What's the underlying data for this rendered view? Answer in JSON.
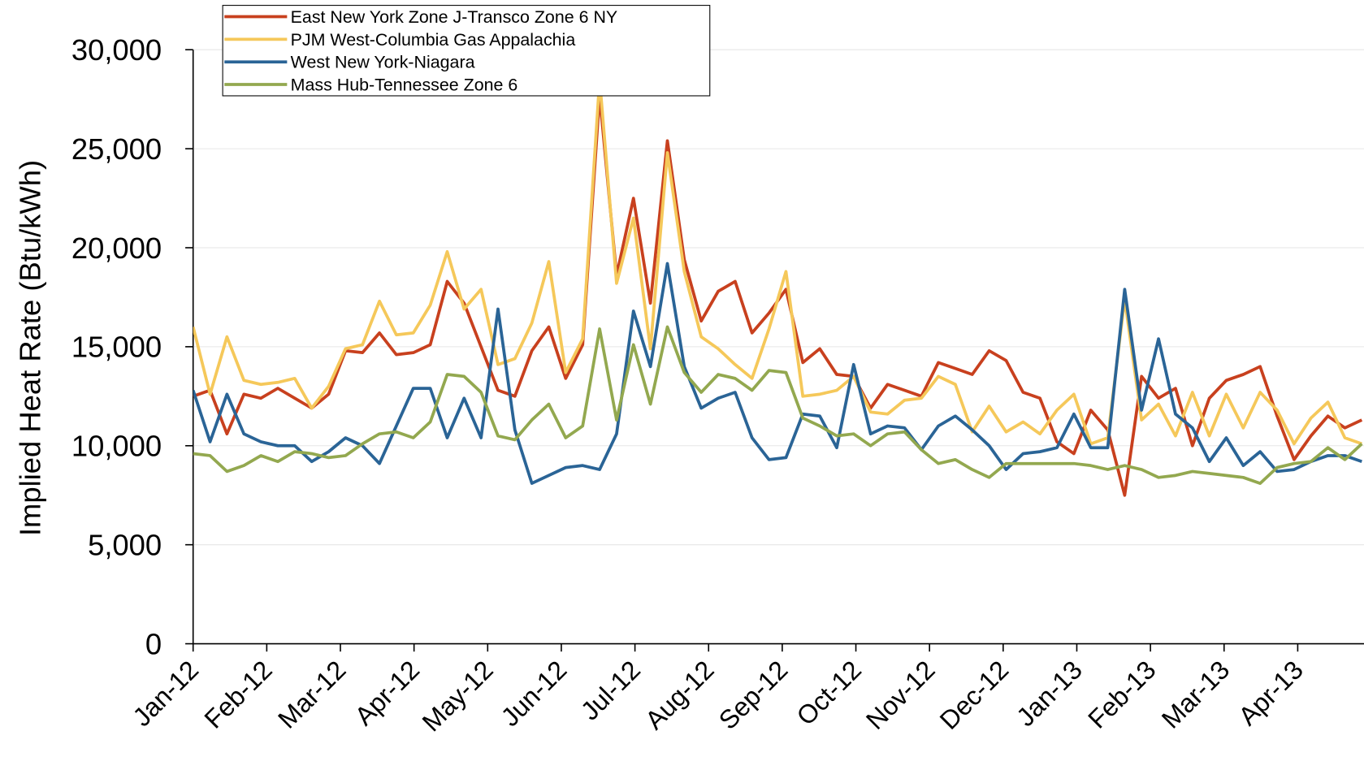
{
  "chart_data": {
    "type": "line",
    "ylabel": "Implied Heat Rate (Btu/kWh)",
    "x": [
      0,
      0.23,
      0.46,
      0.69,
      0.92,
      1.15,
      1.38,
      1.61,
      1.84,
      2.07,
      2.3,
      2.53,
      2.76,
      2.99,
      3.22,
      3.45,
      3.68,
      3.91,
      4.14,
      4.37,
      4.6,
      4.83,
      5.06,
      5.29,
      5.52,
      5.75,
      5.98,
      6.21,
      6.44,
      6.67,
      6.9,
      7.13,
      7.36,
      7.59,
      7.82,
      8.05,
      8.28,
      8.51,
      8.74,
      8.97,
      9.2,
      9.43,
      9.66,
      9.89,
      10.12,
      10.35,
      10.58,
      10.81,
      11.04,
      11.27,
      11.5,
      11.73,
      11.96,
      12.19,
      12.42,
      12.65,
      12.88,
      13.11,
      13.34,
      13.57,
      13.8,
      14.03,
      14.26,
      14.49,
      14.72,
      14.95,
      15.18,
      15.41,
      15.64,
      15.87
    ],
    "xlim": [
      0,
      15.9
    ],
    "xticks": [
      {
        "value": 0,
        "label": "Jan-12"
      },
      {
        "value": 1,
        "label": "Feb-12"
      },
      {
        "value": 2,
        "label": "Mar-12"
      },
      {
        "value": 3,
        "label": "Apr-12"
      },
      {
        "value": 4,
        "label": "May-12"
      },
      {
        "value": 5,
        "label": "Jun-12"
      },
      {
        "value": 6,
        "label": "Jul-12"
      },
      {
        "value": 7,
        "label": "Aug-12"
      },
      {
        "value": 8,
        "label": "Sep-12"
      },
      {
        "value": 9,
        "label": "Oct-12"
      },
      {
        "value": 10,
        "label": "Nov-12"
      },
      {
        "value": 11,
        "label": "Dec-12"
      },
      {
        "value": 12,
        "label": "Jan-13"
      },
      {
        "value": 13,
        "label": "Feb-13"
      },
      {
        "value": 14,
        "label": "Mar-13"
      },
      {
        "value": 15,
        "label": "Apr-13"
      }
    ],
    "ylim": [
      0,
      30000
    ],
    "yticks": [
      0,
      {
        "value": 5000,
        "label": "5,000"
      },
      {
        "value": 10000,
        "label": "10,000"
      },
      {
        "value": 15000,
        "label": "15,000"
      },
      {
        "value": 20000,
        "label": "20,000"
      },
      {
        "value": 25000,
        "label": "25,000"
      },
      {
        "value": 30000,
        "label": "30,000"
      }
    ],
    "grid": true,
    "legend": "top-left",
    "series": [
      {
        "name": "East New York Zone J-Transco Zone 6 NY",
        "color": "#c8401e",
        "values": [
          12500,
          12800,
          10600,
          12600,
          12400,
          12900,
          12400,
          11900,
          12600,
          14800,
          14700,
          15700,
          14600,
          14700,
          15100,
          18300,
          17200,
          15000,
          12800,
          12500,
          14800,
          16000,
          13400,
          15100,
          27700,
          18600,
          22500,
          17200,
          25400,
          19400,
          16300,
          17800,
          18300,
          15700,
          16700,
          17900,
          14200,
          14900,
          13600,
          13500,
          11900,
          13100,
          12800,
          12500,
          14200,
          13900,
          13600,
          14800,
          14300,
          12700,
          12400,
          10200,
          9600,
          11800,
          10800,
          7500,
          13500,
          12400,
          12900,
          10000,
          12400,
          13300,
          13600,
          14000,
          11500,
          9300,
          10500,
          11500,
          10900,
          11300
        ]
      },
      {
        "name": "PJM West-Columbia Gas Appalachia",
        "color": "#f5c85a",
        "values": [
          16000,
          12600,
          15500,
          13300,
          13100,
          13200,
          13400,
          11900,
          13000,
          14900,
          15100,
          17300,
          15600,
          15700,
          17100,
          19800,
          16900,
          17900,
          14100,
          14400,
          16200,
          19300,
          13700,
          15400,
          28500,
          18200,
          21500,
          14900,
          24800,
          18800,
          15500,
          14900,
          14100,
          13400,
          15900,
          18800,
          12500,
          12600,
          12800,
          13500,
          11700,
          11600,
          12300,
          12400,
          13500,
          13100,
          10700,
          12000,
          10700,
          11200,
          10600,
          11800,
          12600,
          10100,
          10400,
          17400,
          11300,
          12100,
          10500,
          12700,
          10500,
          12600,
          10900,
          12700,
          11800,
          10100,
          11400,
          12200,
          10400,
          10100
        ]
      },
      {
        "name": "West New York-Niagara",
        "color": "#2a6496",
        "values": [
          12800,
          10200,
          12600,
          10600,
          10200,
          10000,
          10000,
          9200,
          9700,
          10400,
          10000,
          9100,
          11000,
          12900,
          12900,
          10400,
          12400,
          10400,
          16900,
          10800,
          8100,
          8500,
          8900,
          9000,
          8800,
          10600,
          16800,
          14000,
          19200,
          14000,
          11900,
          12400,
          12700,
          10400,
          9300,
          9400,
          11600,
          11500,
          9900,
          14100,
          10600,
          11000,
          10900,
          9800,
          11000,
          11500,
          10800,
          10000,
          8800,
          9600,
          9700,
          9900,
          11600,
          9900,
          9900,
          17900,
          11800,
          15400,
          11600,
          10900,
          9200,
          10400,
          9000,
          9700,
          8700,
          8800,
          9200,
          9500,
          9500,
          9200
        ]
      },
      {
        "name": "Mass Hub-Tennessee Zone 6",
        "color": "#93a84f",
        "values": [
          9600,
          9500,
          8700,
          9000,
          9500,
          9200,
          9700,
          9600,
          9400,
          9500,
          10100,
          10600,
          10700,
          10400,
          11200,
          13600,
          13500,
          12700,
          10500,
          10300,
          11300,
          12100,
          10400,
          11000,
          15900,
          11300,
          15100,
          12100,
          16000,
          13700,
          12700,
          13600,
          13400,
          12800,
          13800,
          13700,
          11400,
          11000,
          10500,
          10600,
          10000,
          10600,
          10700,
          9800,
          9100,
          9300,
          8800,
          8400,
          9100,
          9100,
          9100,
          9100,
          9100,
          9000,
          8800,
          9000,
          8800,
          8400,
          8500,
          8700,
          8600,
          8500,
          8400,
          8100,
          8900,
          9100,
          9200,
          9900,
          9300,
          10100
        ]
      }
    ]
  }
}
